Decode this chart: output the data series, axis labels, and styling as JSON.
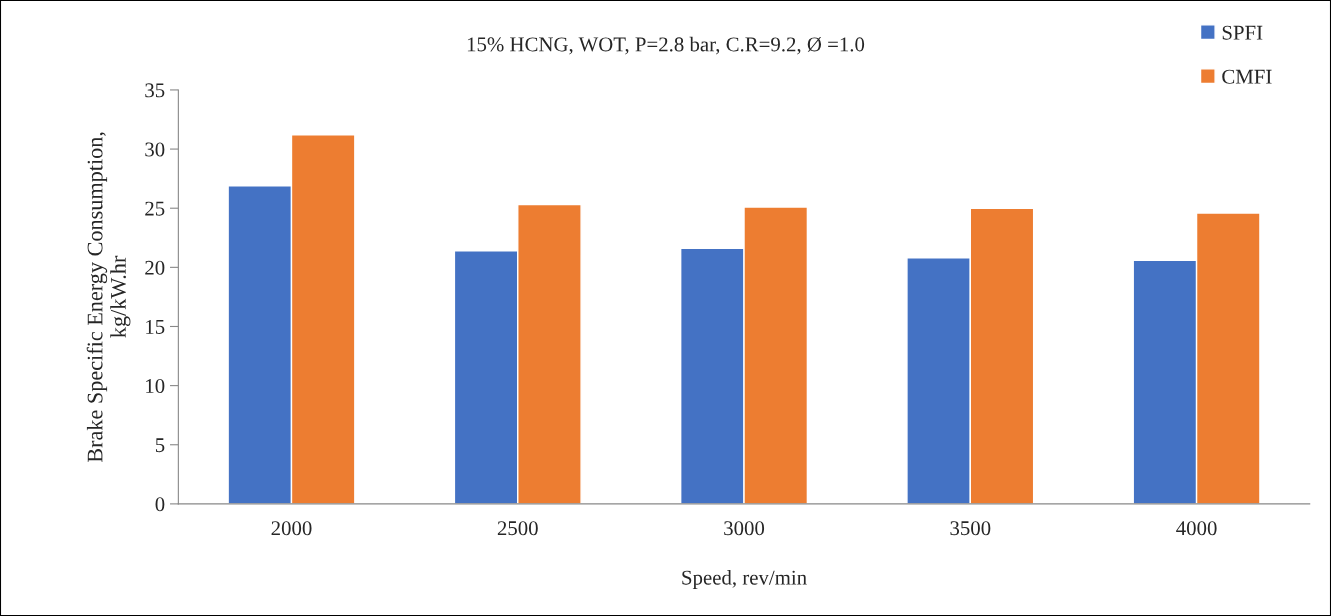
{
  "chart_data": {
    "type": "bar",
    "title": "15% HCNG, WOT, P=2.8 bar, C.R=9.2, Ø =1.0",
    "xlabel": "Speed, rev/min",
    "ylabel": "Brake Specific Energy Consumption,\nkg/kW.hr",
    "categories": [
      "2000",
      "2500",
      "3000",
      "3500",
      "4000"
    ],
    "series": [
      {
        "name": "SPFI",
        "color": "#4472c4",
        "values": [
          26.9,
          21.4,
          21.6,
          20.8,
          20.6
        ]
      },
      {
        "name": "CMFI",
        "color": "#ed7d31",
        "values": [
          31.2,
          25.3,
          25.1,
          25.0,
          24.6
        ]
      }
    ],
    "ylim": [
      0,
      35
    ],
    "yticks": [
      0,
      5,
      10,
      15,
      20,
      25,
      30,
      35
    ],
    "grid": false,
    "legend": "top right"
  }
}
